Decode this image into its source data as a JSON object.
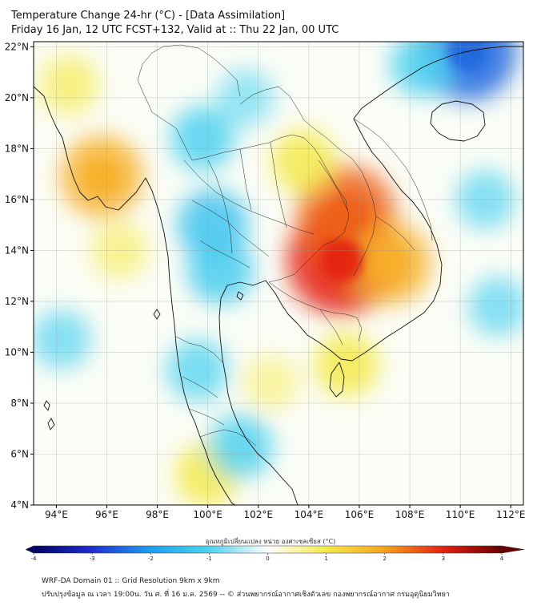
{
  "title": {
    "line1": "Temperature Change 24-hr (°C) - [Data Assimilation]",
    "line2": "Friday 16 Jan, 12 UTC FCST+132, Valid at :: Thu 22 Jan, 00 UTC"
  },
  "map": {
    "lat_range": [
      4,
      22.2
    ],
    "lon_range": [
      93.1,
      112.5
    ],
    "lat_ticks": [
      {
        "value": 22,
        "label": "22°N"
      },
      {
        "value": 20,
        "label": "20°N"
      },
      {
        "value": 18,
        "label": "18°N"
      },
      {
        "value": 16,
        "label": "16°N"
      },
      {
        "value": 14,
        "label": "14°N"
      },
      {
        "value": 12,
        "label": "12°N"
      },
      {
        "value": 10,
        "label": "10°N"
      },
      {
        "value": 8,
        "label": "8°N"
      },
      {
        "value": 6,
        "label": "6°N"
      },
      {
        "value": 4,
        "label": "4°N"
      }
    ],
    "lon_ticks": [
      {
        "value": 94,
        "label": "94°E"
      },
      {
        "value": 96,
        "label": "96°E"
      },
      {
        "value": 98,
        "label": "98°E"
      },
      {
        "value": 100,
        "label": "100°E"
      },
      {
        "value": 102,
        "label": "102°E"
      },
      {
        "value": 104,
        "label": "104°E"
      },
      {
        "value": 106,
        "label": "106°E"
      },
      {
        "value": 108,
        "label": "108°E"
      },
      {
        "value": 110,
        "label": "110°E"
      },
      {
        "value": 112,
        "label": "112°E"
      }
    ],
    "anomaly_areas": [
      {
        "name": "cambodia-laos-warm-core",
        "lon": 105.3,
        "lat": 13.6,
        "value": 3.0
      },
      {
        "name": "laos-warm-ridge",
        "lon": 105.5,
        "lat": 15.4,
        "value": 2.5
      },
      {
        "name": "central-vietnam-warm",
        "lon": 107.2,
        "lat": 13.5,
        "value": 1.8
      },
      {
        "name": "north-laos-warm",
        "lon": 103.8,
        "lat": 17.5,
        "value": 1.0
      },
      {
        "name": "myanmar-warm-spot",
        "lon": 95.8,
        "lat": 16.9,
        "value": 1.8
      },
      {
        "name": "andaman-warm",
        "lon": 96.5,
        "lat": 14.0,
        "value": 0.7
      },
      {
        "name": "south-vietnam-warm",
        "lon": 105.5,
        "lat": 9.5,
        "value": 1.0
      },
      {
        "name": "gulf-of-thailand-warm",
        "lon": 102.5,
        "lat": 8.8,
        "value": 0.6
      },
      {
        "name": "malay-warm",
        "lon": 100.0,
        "lat": 5.2,
        "value": 1.0
      },
      {
        "name": "northwest-warm",
        "lon": 94.5,
        "lat": 20.5,
        "value": 0.8
      },
      {
        "name": "thailand-cool",
        "lon": 100.2,
        "lat": 15.0,
        "value": -1.3
      },
      {
        "name": "central-thailand-cool",
        "lon": 100.5,
        "lat": 13.2,
        "value": -1.1
      },
      {
        "name": "north-thailand-cool",
        "lon": 99.8,
        "lat": 18.4,
        "value": -1.0
      },
      {
        "name": "south-thailand-cool",
        "lon": 99.6,
        "lat": 9.3,
        "value": -0.9
      },
      {
        "name": "southern-peninsula-cool",
        "lon": 101.3,
        "lat": 6.3,
        "value": -1.0
      },
      {
        "name": "west-sea-cool",
        "lon": 94.2,
        "lat": 10.5,
        "value": -0.8
      },
      {
        "name": "north-cool-blob",
        "lon": 110.3,
        "lat": 21.8,
        "value": -2.5
      },
      {
        "name": "northeast-cool",
        "lon": 108.5,
        "lat": 21.3,
        "value": -1.0
      },
      {
        "name": "east-sea-cool",
        "lon": 111.0,
        "lat": 16.0,
        "value": -0.8
      },
      {
        "name": "east-sea-cool-2",
        "lon": 111.5,
        "lat": 11.8,
        "value": -0.8
      },
      {
        "name": "northern-highland-cool",
        "lon": 101.5,
        "lat": 20.0,
        "value": -0.7
      }
    ]
  },
  "colorbar": {
    "title": "อุณหภูมิเปลี่ยนแปลง หน่วย องศาเซลเซียส (°C)",
    "min": -4,
    "max": 4,
    "ticks": [
      {
        "value": -4,
        "label": "-4"
      },
      {
        "value": -3,
        "label": "-3"
      },
      {
        "value": -2,
        "label": "-2"
      },
      {
        "value": -1,
        "label": "-1"
      },
      {
        "value": 0,
        "label": "0"
      },
      {
        "value": 1,
        "label": "1"
      },
      {
        "value": 2,
        "label": "2"
      },
      {
        "value": 3,
        "label": "3"
      },
      {
        "value": 4,
        "label": "4"
      }
    ],
    "stops": [
      {
        "value": -4,
        "color": "#000066"
      },
      {
        "value": -3,
        "color": "#1f2fd0"
      },
      {
        "value": -2,
        "color": "#1f9fef"
      },
      {
        "value": -1,
        "color": "#4fd2f0"
      },
      {
        "value": 0,
        "color": "#ffffff"
      },
      {
        "value": 1,
        "color": "#f5ea4a"
      },
      {
        "value": 2,
        "color": "#f7a21f"
      },
      {
        "value": 3,
        "color": "#e42010"
      },
      {
        "value": 4,
        "color": "#660000"
      }
    ]
  },
  "footer": {
    "line1": "WRF-DA Domain 01 :: Grid Resolution 9km x 9km",
    "line2": "ปรับปรุงข้อมูล ณ เวลา 19:00น. วัน ศ. ที่ 16 ม.ค. 2569 -- © ส่วนพยากรณ์อากาศเชิงตัวเลข กองพยากรณ์อากาศ กรมอุตุนิยมวิทยา"
  }
}
